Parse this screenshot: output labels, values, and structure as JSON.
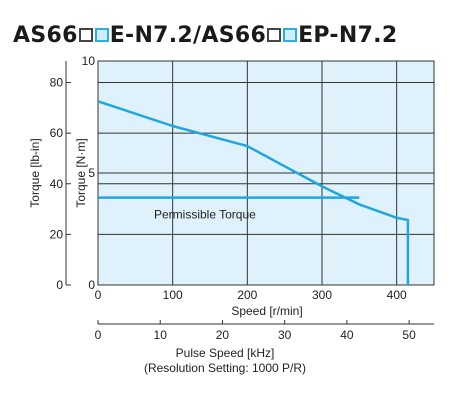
{
  "title": {
    "part1": "AS66",
    "part2": "E-N7.2/AS66",
    "part3": "EP-N7.2"
  },
  "colors": {
    "plot_background": "#dff2fb",
    "curve": "#1fa6e0",
    "grid": "#333333"
  },
  "chart_data": {
    "type": "line",
    "xlabel": "Speed [r/min]",
    "x_ticks": [
      0,
      100,
      200,
      300,
      400
    ],
    "xlim": [
      0,
      450
    ],
    "ylabel_left": "Torque [lb-in]",
    "y_left_ticks": [
      0,
      20,
      40,
      60,
      80
    ],
    "ylabel_inner": "Torque [N·m]",
    "y_inner_ticks": [
      0,
      5,
      10
    ],
    "ylim": [
      0,
      10
    ],
    "secondary_x": {
      "label": "Pulse Speed [kHz]",
      "note": "(Resolution Setting: 1000 P/R)",
      "ticks": [
        0,
        10,
        20,
        30,
        40,
        50
      ]
    },
    "series": [
      {
        "x": [
          0,
          100,
          200,
          250,
          300,
          350,
          400,
          415,
          415
        ],
        "y": [
          8.2,
          7.1,
          6.2,
          5.3,
          4.4,
          3.6,
          3.0,
          2.9,
          0
        ]
      },
      {
        "name": "Permissible Torque",
        "x": [
          0,
          350
        ],
        "y": [
          3.9,
          3.9
        ]
      }
    ]
  }
}
